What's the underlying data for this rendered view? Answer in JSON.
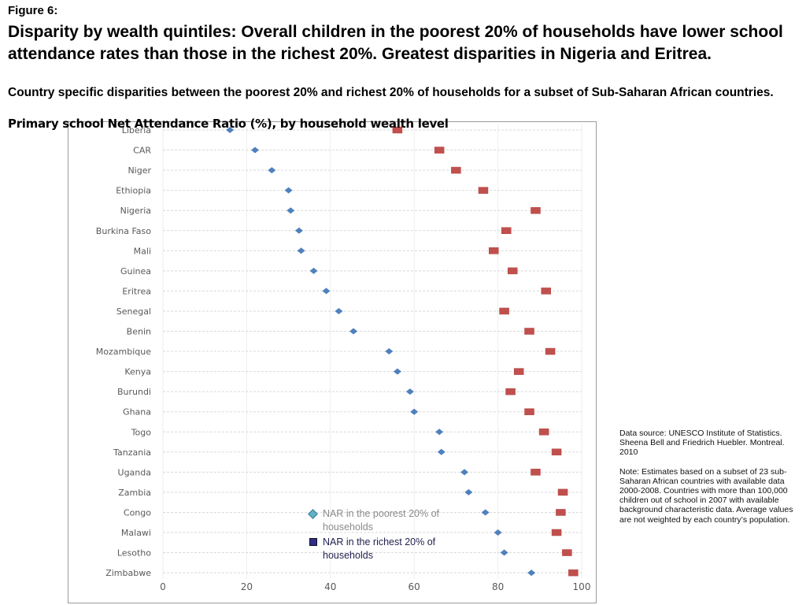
{
  "header": {
    "figure_label": "Figure 6:",
    "headline": "Disparity by wealth quintiles: Overall children in the poorest 20% of households have lower school attendance rates than those in the richest 20%.  Greatest disparities in Nigeria and Eritrea.",
    "subheadline": "Country specific disparities between the poorest 20% and richest 20% of households for a subset of Sub-Saharan African countries."
  },
  "notes": {
    "source": "Data source: UNESCO Institute of Statistics. Sheena Bell and Friedrich Huebler. Montreal. 2010",
    "note": "Note: Estimates based on a subset of 23 sub-Saharan African countries with available data 2000-2008. Countries with more than 100,000 children out of school in 2007 with available background characteristic data. Average values are not weighted by each country’s population."
  },
  "colors": {
    "poorest": "#4f81bd",
    "richest": "#c0504d",
    "gridline": "#d9d9d9",
    "axis_text": "#595959"
  },
  "chart_data": {
    "type": "scatter",
    "title": "Primary school Net Attendance Ratio (%), by household wealth level",
    "xlabel": "",
    "ylabel": "",
    "xlim": [
      0,
      100
    ],
    "xticks": [
      0,
      20,
      40,
      60,
      80,
      100
    ],
    "grid": true,
    "legend_position": "bottom-center",
    "categories": [
      "Liberia",
      "CAR",
      "Niger",
      "Ethiopia",
      "Nigeria",
      "Burkina Faso",
      "Mali",
      "Guinea",
      "Eritrea",
      "Senegal",
      "Benin",
      "Mozambique",
      "Kenya",
      "Burundi",
      "Ghana",
      "Togo",
      "Tanzania",
      "Uganda",
      "Zambia",
      "Congo",
      "Malawi",
      "Lesotho",
      "Zimbabwe"
    ],
    "series": [
      {
        "name": "NAR in the poorest 20% of households",
        "marker": "diamond",
        "values": [
          16,
          22,
          26,
          30,
          30.5,
          32.5,
          33,
          36,
          39,
          42,
          45.5,
          54,
          56,
          59,
          60,
          66,
          66.5,
          72,
          73,
          77,
          80,
          81.5,
          88
        ]
      },
      {
        "name": "NAR in the richest 20% of households",
        "marker": "square",
        "values": [
          56,
          66,
          70,
          76.5,
          89,
          82,
          79,
          83.5,
          91.5,
          81.5,
          87.5,
          92.5,
          85,
          83,
          87.5,
          91,
          94,
          89,
          95.5,
          95,
          94,
          96.5,
          98
        ]
      }
    ]
  }
}
